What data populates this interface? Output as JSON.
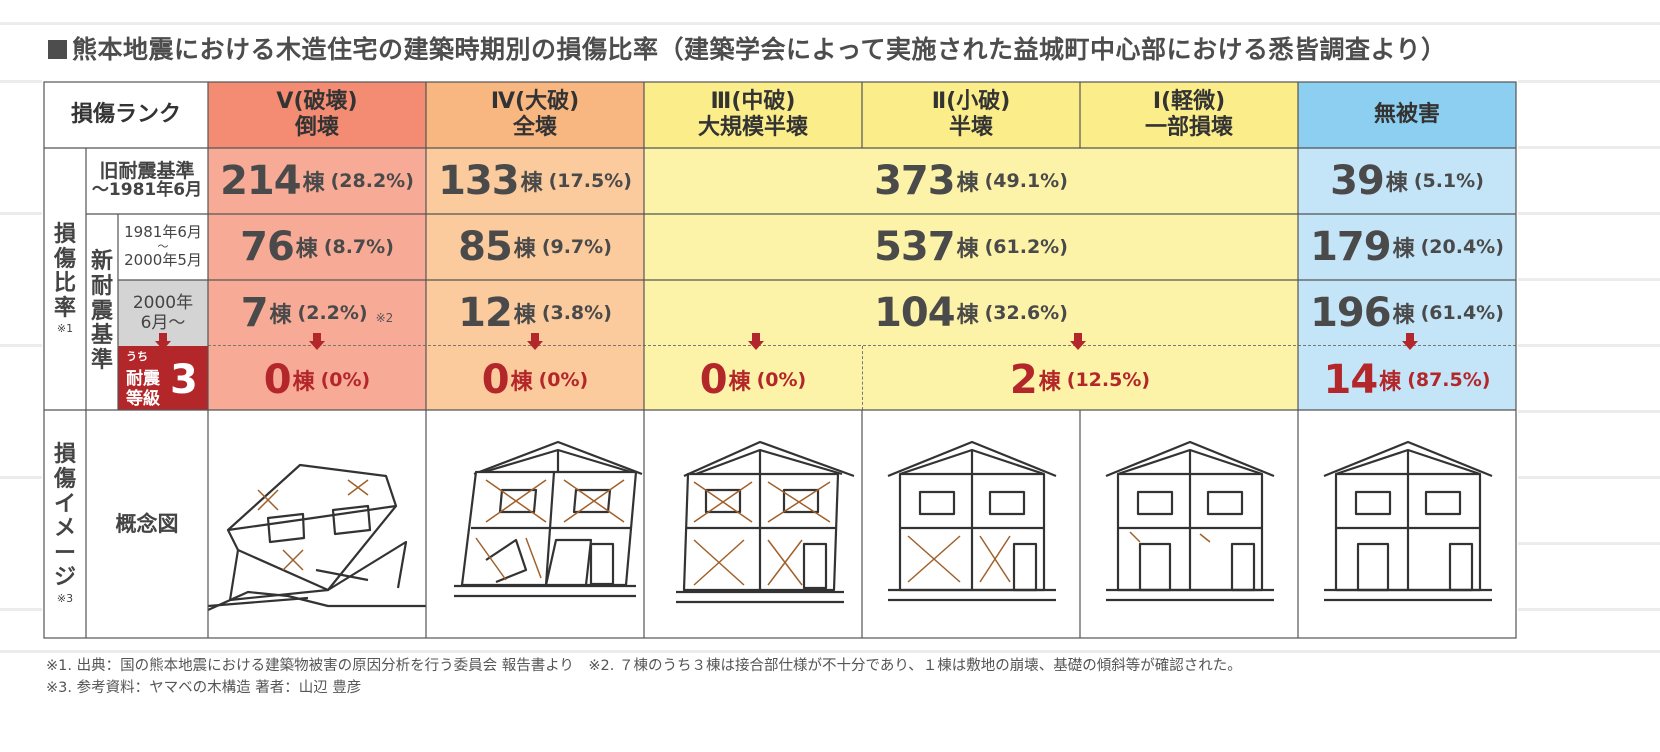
{
  "title": "熊本地震における木造住宅の建築時期別の損傷比率（建築学会によって実施された益城町中心部における悉皆調査より）",
  "header": {
    "rank_label": "損傷ランク",
    "ranks": [
      {
        "line1": "Ⅴ(破壊)",
        "line2": "倒壊"
      },
      {
        "line1": "Ⅳ(大破)",
        "line2": "全壊"
      },
      {
        "line1": "Ⅲ(中破)",
        "line2": "大規模半壊"
      },
      {
        "line1": "Ⅱ(小破)",
        "line2": "半壊"
      },
      {
        "line1": "Ⅰ(軽微)",
        "line2": "一部損壊"
      }
    ],
    "no_damage": "無被害"
  },
  "side": {
    "damage_ratio": "損傷比率",
    "damage_ratio_note": "※1",
    "old_std_line1": "旧耐震基準",
    "old_std_line2": "～1981年6月",
    "new_std": "新耐震基準",
    "period_a_line1": "1981年6月",
    "period_a_line2": "～",
    "period_a_line3": "2000年5月",
    "period_b_line1": "2000年",
    "period_b_line2": "6月～",
    "grade3_prefix": "うち",
    "grade3_line1": "耐震",
    "grade3_line2": "等級",
    "grade3_num": "3",
    "image_label": "損傷イメージ",
    "image_note": "※3",
    "concept": "概念図"
  },
  "unit": "棟",
  "rows": {
    "old": [
      {
        "n": "214",
        "p": "(28.2%)"
      },
      {
        "n": "133",
        "p": "(17.5%)"
      },
      {
        "n": "373",
        "p": "(49.1%)"
      },
      {
        "n": "39",
        "p": "(5.1%)"
      }
    ],
    "mid": [
      {
        "n": "76",
        "p": "(8.7%)"
      },
      {
        "n": "85",
        "p": "(9.7%)"
      },
      {
        "n": "537",
        "p": "(61.2%)"
      },
      {
        "n": "179",
        "p": "(20.4%)"
      }
    ],
    "new": [
      {
        "n": "7",
        "p": "(2.2%)",
        "note": "※2"
      },
      {
        "n": "12",
        "p": "(3.8%)"
      },
      {
        "n": "104",
        "p": "(32.6%)"
      },
      {
        "n": "196",
        "p": "(61.4%)"
      }
    ],
    "grade3": [
      {
        "n": "0",
        "p": "(0%)"
      },
      {
        "n": "0",
        "p": "(0%)"
      },
      {
        "n": "0",
        "p": "(0%)"
      },
      {
        "n": "2",
        "p": "(12.5%)"
      },
      {
        "n": "14",
        "p": "(87.5%)"
      }
    ]
  },
  "footnotes": {
    "line1": "※1. 出典：国の熊本地震における建築物被害の原因分析を行う委員会 報告書より　※2. ７棟のうち３棟は接合部仕様が不十分であり、１棟は敷地の崩壊、基礎の傾斜等が確認された。",
    "line2": "※3. 参考資料：ヤマベの木構造 著者：山辺 豊彦"
  },
  "colors": {
    "rank5": "#f48c73",
    "rank5_light": "#f7ab97",
    "rank4": "#f8b680",
    "rank4_light": "#fbcb9e",
    "rank3to1": "#fbee8a",
    "rank3to1_light": "#fdf3a8",
    "no_damage": "#8dcff0",
    "no_damage_light": "#c4e5f8",
    "accent_red": "#b3262a",
    "period_gray": "#d4d4d4"
  }
}
